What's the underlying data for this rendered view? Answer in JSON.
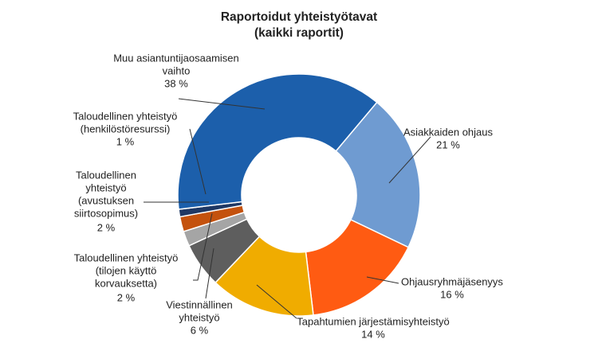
{
  "chart_data": {
    "type": "donut",
    "title": "Raportoidut yhteistyötavat",
    "subtitle": "(kaikki raportit)",
    "categories": [
      [
        "Asiakkaiden ohjaus"
      ],
      [
        "Ohjausryhmäjäsenyys"
      ],
      [
        "Tapahtumien  järjestämisyhteistyö"
      ],
      [
        "Viestinnällinen",
        "yhteistyö"
      ],
      [
        "Taloudellinen  yhteistyö",
        "(tilojen  käyttö",
        "korvauksetta)"
      ],
      [
        "Taloudellinen",
        "yhteistyö",
        "(avustuksen",
        "siirtosopimus)"
      ],
      [
        "Taloudellinen  yhteistyö",
        "(henkilöstöresurssi)"
      ],
      [
        "Muu  asiantuntijaosaamisen",
        "vaihto"
      ]
    ],
    "values": [
      21,
      16,
      14,
      6,
      2,
      2,
      1,
      38
    ],
    "value_labels": [
      "21 %",
      "16 %",
      "14 %",
      "6 %",
      "2 %",
      "2 %",
      "1 %",
      "38 %"
    ],
    "colors": [
      "#6f9bd1",
      "#ff5b12",
      "#f0ac00",
      "#5e5e5e",
      "#a5a5a5",
      "#c4520e",
      "#1f3864",
      "#1c5fab"
    ]
  }
}
